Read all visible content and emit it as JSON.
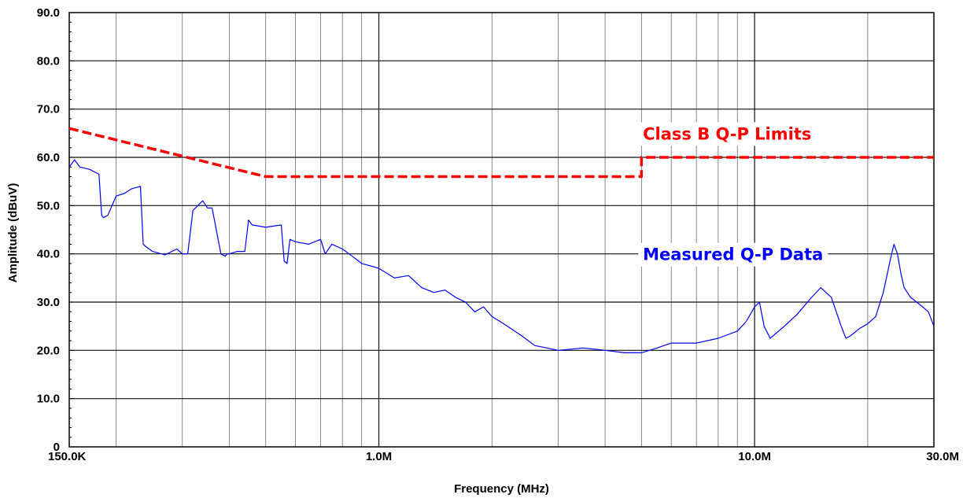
{
  "chart_data": {
    "type": "line",
    "xlabel": "Frequency (MHz)",
    "ylabel": "Amplitude (dBuV)",
    "x_scale": "log",
    "xlim": [
      0.15,
      30
    ],
    "ylim": [
      0,
      90
    ],
    "grid": true,
    "x_tick_labels": [
      {
        "x": 0.15,
        "label": "150.0K"
      },
      {
        "x": 1,
        "label": "1.0M"
      },
      {
        "x": 10,
        "label": "10.0M"
      },
      {
        "x": 30,
        "label": "30.0M"
      }
    ],
    "y_tick_labels": [
      {
        "y": 0,
        "label": "0"
      },
      {
        "y": 10,
        "label": "10.0"
      },
      {
        "y": 20,
        "label": "20.0"
      },
      {
        "y": 30,
        "label": "30.0"
      },
      {
        "y": 40,
        "label": "40.0"
      },
      {
        "y": 50,
        "label": "50.0"
      },
      {
        "y": 60,
        "label": "60.0"
      },
      {
        "y": 70,
        "label": "70.0"
      },
      {
        "y": 80,
        "label": "80.0"
      },
      {
        "y": 90,
        "label": "90.0"
      }
    ],
    "series": [
      {
        "name": "Class B Q-P Limits",
        "color": "#ff0000",
        "style": "dashed",
        "x": [
          0.15,
          0.5,
          5,
          5,
          30
        ],
        "y": [
          66,
          56,
          56,
          60,
          60
        ]
      },
      {
        "name": "Measured Q-P Data",
        "color": "#0000ff",
        "style": "solid",
        "x": [
          0.15,
          0.155,
          0.16,
          0.17,
          0.18,
          0.183,
          0.185,
          0.19,
          0.2,
          0.21,
          0.22,
          0.232,
          0.236,
          0.24,
          0.25,
          0.27,
          0.29,
          0.3,
          0.31,
          0.32,
          0.33,
          0.34,
          0.35,
          0.36,
          0.38,
          0.39,
          0.395,
          0.4,
          0.42,
          0.44,
          0.45,
          0.46,
          0.5,
          0.55,
          0.56,
          0.57,
          0.58,
          0.6,
          0.65,
          0.7,
          0.72,
          0.75,
          0.8,
          0.85,
          0.9,
          0.95,
          1.0,
          1.1,
          1.2,
          1.3,
          1.4,
          1.5,
          1.6,
          1.7,
          1.8,
          1.9,
          2.0,
          2.1,
          2.2,
          2.4,
          2.6,
          2.8,
          3.0,
          3.5,
          4.0,
          4.5,
          5.0,
          5.5,
          6.0,
          7.0,
          8.0,
          9.0,
          9.5,
          10.0,
          10.3,
          10.6,
          11.0,
          12.0,
          13.0,
          14.0,
          15.0,
          16.0,
          17.0,
          17.5,
          18.0,
          19.0,
          20.0,
          21.0,
          22.0,
          23.0,
          23.5,
          24.0,
          24.5,
          25.0,
          26.0,
          27.0,
          28.0,
          29.0,
          30.0
        ],
        "y": [
          58,
          59.5,
          58,
          57.5,
          56.5,
          48,
          47.5,
          48,
          52,
          52.5,
          53.5,
          54,
          42,
          41.5,
          40.5,
          39.8,
          41,
          40,
          40,
          49,
          50,
          51,
          49.5,
          49.5,
          40,
          39.5,
          40,
          40,
          40.5,
          40.5,
          47,
          46,
          45.5,
          46,
          38.5,
          38,
          43,
          42.5,
          42,
          43,
          40,
          42,
          41,
          39.5,
          38,
          37.5,
          37,
          35,
          35.5,
          33,
          32,
          32.5,
          31,
          30,
          28,
          29,
          27,
          26,
          25,
          23,
          21,
          20.5,
          20,
          20.5,
          20,
          19.5,
          19.5,
          20.5,
          21.5,
          21.5,
          22.5,
          24,
          26,
          29,
          30,
          25,
          22.5,
          25,
          27.5,
          30.5,
          33,
          31,
          25,
          22.5,
          23,
          24.5,
          25.5,
          27,
          32,
          39,
          42,
          40,
          36,
          33,
          31,
          30,
          29,
          28,
          25
        ]
      }
    ],
    "annotations": [
      {
        "text": "Class B Q-P Limits",
        "color": "#ff0000",
        "x": 10,
        "y": 65
      },
      {
        "text": "Measured Q-P Data",
        "color": "#0000ff",
        "x": 10,
        "y": 40
      }
    ]
  }
}
